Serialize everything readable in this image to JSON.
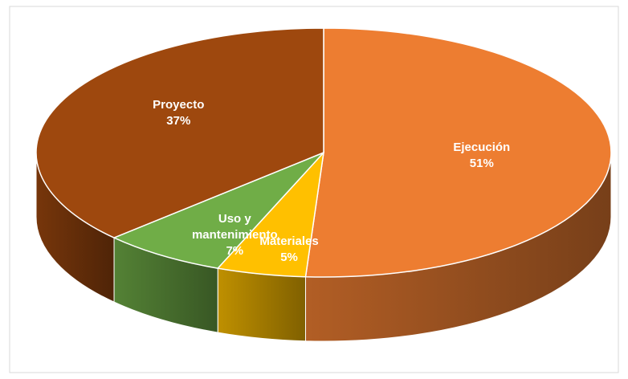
{
  "chart_data": {
    "type": "pie",
    "categories": [
      "Ejecución",
      "Materiales",
      "Uso y mantenimiento",
      "Proyecto"
    ],
    "values": [
      51,
      5,
      7,
      37
    ],
    "value_labels": [
      "51%",
      "5%",
      "7%",
      "37%"
    ],
    "colors": [
      "#ED7D31",
      "#FFC000",
      "#70AD47",
      "#9E480E"
    ]
  }
}
